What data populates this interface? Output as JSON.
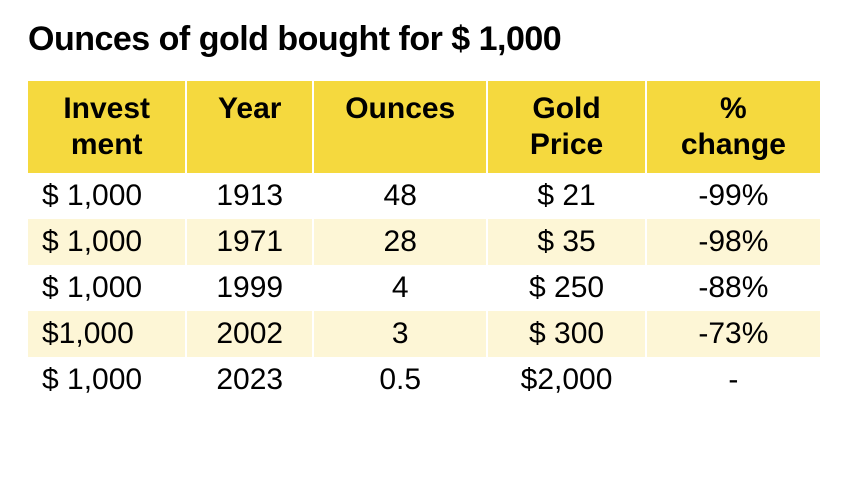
{
  "title": "Ounces of gold bought for $ 1,000",
  "table": {
    "type": "table",
    "background_color": "#ffffff",
    "header_bg_color": "#f5d93e",
    "row_alt_bg_color": "#fdf6d6",
    "header_fontsize": 30,
    "cell_fontsize": 30,
    "title_fontsize": 34,
    "text_color": "#000000",
    "columns": [
      {
        "line1": "Invest",
        "line2": "ment",
        "width_pct": 20,
        "align": "left"
      },
      {
        "line1": "Year",
        "line2": "",
        "width_pct": 16,
        "align": "center"
      },
      {
        "line1": "Ounces",
        "line2": "",
        "width_pct": 22,
        "align": "center"
      },
      {
        "line1": "Gold",
        "line2": "Price",
        "width_pct": 20,
        "align": "center"
      },
      {
        "line1": "%",
        "line2": "change",
        "width_pct": 22,
        "align": "center"
      }
    ],
    "rows": [
      {
        "investment": "$ 1,000",
        "year": "1913",
        "ounces": "48",
        "gold_price": "$ 21",
        "pct_change": "-99%"
      },
      {
        "investment": "$ 1,000",
        "year": "1971",
        "ounces": "28",
        "gold_price": "$ 35",
        "pct_change": "-98%"
      },
      {
        "investment": "$ 1,000",
        "year": "1999",
        "ounces": "4",
        "gold_price": "$ 250",
        "pct_change": "-88%"
      },
      {
        "investment": "$1,000",
        "year": "2002",
        "ounces": "3",
        "gold_price": "$ 300",
        "pct_change": "-73%"
      },
      {
        "investment": "$ 1,000",
        "year": "2023",
        "ounces": "0.5",
        "gold_price": "$2,000",
        "pct_change": "-"
      }
    ]
  }
}
